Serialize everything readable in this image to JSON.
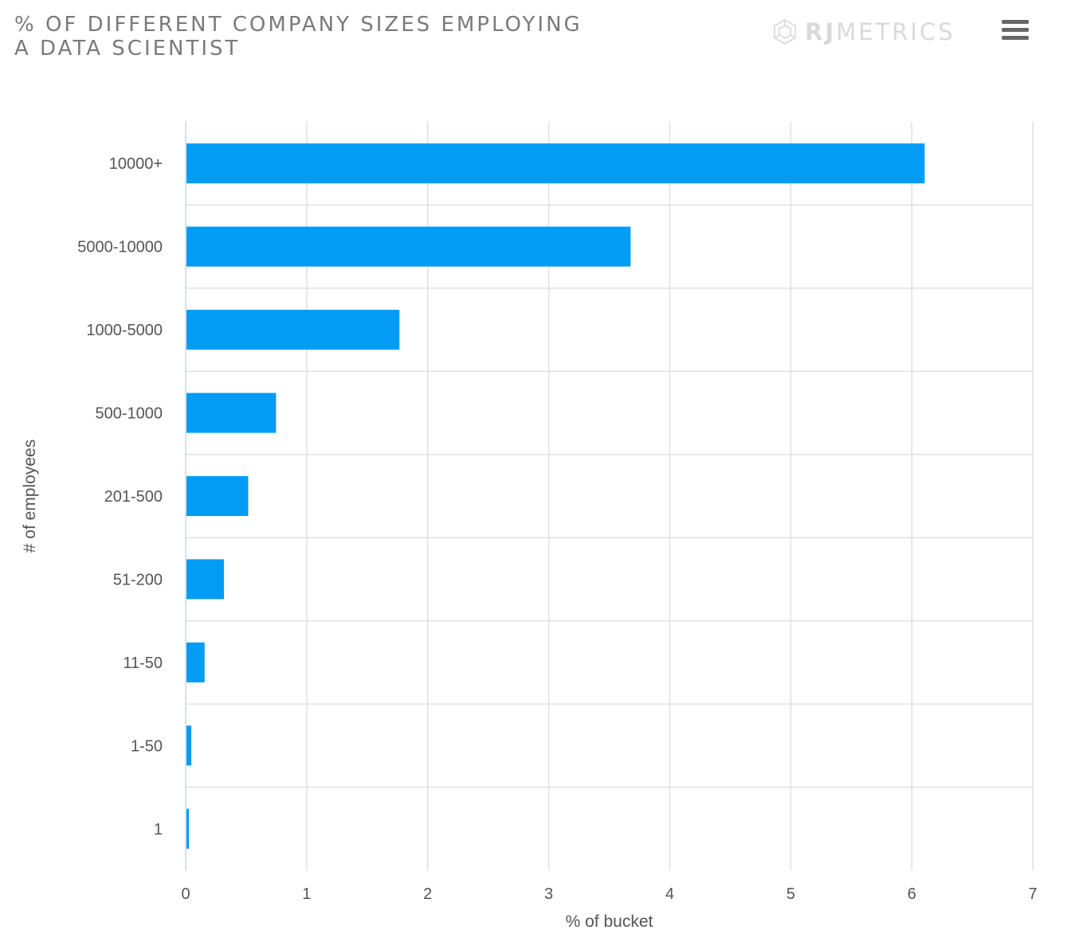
{
  "header": {
    "title_line1": "% OF DIFFERENT COMPANY SIZES EMPLOYING",
    "title_line2": "A DATA SCIENTIST",
    "logo_bold": "RJ",
    "logo_light": "METRICS",
    "logo_icon": "rjmetrics-logo-icon",
    "menu_icon": "hamburger-menu-icon"
  },
  "colors": {
    "bar": "#039cf4",
    "grid": "#e0e0e0",
    "axis_line": "#c8d8e8",
    "text": "#555555",
    "title": "#7a7a7a"
  },
  "chart_data": {
    "type": "bar",
    "orientation": "horizontal",
    "title": "% OF DIFFERENT COMPANY SIZES EMPLOYING A DATA SCIENTIST",
    "xlabel": "% of bucket",
    "ylabel": "# of employees",
    "categories": [
      "10000+",
      "5000-10000",
      "1000-5000",
      "500-1000",
      "201-500",
      "51-200",
      "11-50",
      "1-50",
      "1"
    ],
    "values": [
      6.1,
      3.67,
      1.76,
      0.74,
      0.51,
      0.31,
      0.15,
      0.04,
      0.02
    ],
    "xlim": [
      0,
      7
    ],
    "xticks": [
      0,
      1,
      2,
      3,
      4,
      5,
      6,
      7
    ],
    "grid": true,
    "legend": "none"
  }
}
